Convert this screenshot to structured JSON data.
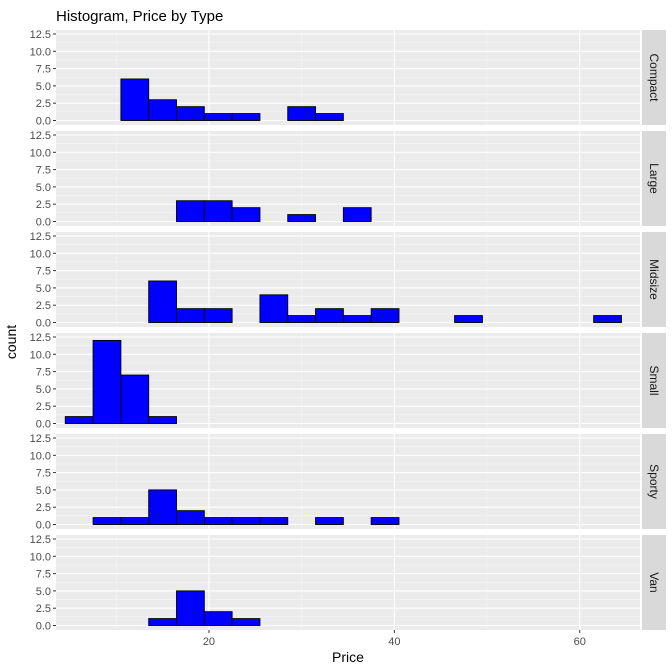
{
  "chart_data": {
    "type": "bar",
    "title": "Histogram, Price by Type",
    "xlabel": "Price",
    "ylabel": "count",
    "xlim": [
      3.5,
      66.5
    ],
    "ylim": [
      0,
      12.5
    ],
    "x_ticks": [
      20,
      40,
      60
    ],
    "y_ticks": [
      0.0,
      2.5,
      5.0,
      7.5,
      10.0,
      12.5
    ],
    "y_tick_labels": [
      "0.0",
      "2.5",
      "5.0",
      "7.5",
      "10.0",
      "12.5"
    ],
    "bin_centers": [
      6,
      9,
      12,
      15,
      18,
      21,
      24,
      27,
      30,
      33,
      36,
      39,
      42,
      45,
      48,
      51,
      54,
      57,
      60,
      63
    ],
    "bin_width": 3,
    "grid": true,
    "bar_fill": "#0000ff",
    "bar_stroke": "#000000",
    "panel_bg": "#ebebeb",
    "strip_bg": "#d9d9d9",
    "series": [
      {
        "name": "Compact",
        "values": [
          0,
          0,
          6,
          3,
          2,
          1,
          1,
          0,
          2,
          1,
          0,
          0,
          0,
          0,
          0,
          0,
          0,
          0,
          0,
          0
        ]
      },
      {
        "name": "Large",
        "values": [
          0,
          0,
          0,
          0,
          3,
          3,
          2,
          0,
          1,
          0,
          2,
          0,
          0,
          0,
          0,
          0,
          0,
          0,
          0,
          0
        ]
      },
      {
        "name": "Midsize",
        "values": [
          0,
          0,
          0,
          6,
          2,
          2,
          0,
          4,
          1,
          2,
          1,
          2,
          0,
          0,
          1,
          0,
          0,
          0,
          0,
          1
        ]
      },
      {
        "name": "Small",
        "values": [
          1,
          12,
          7,
          1,
          0,
          0,
          0,
          0,
          0,
          0,
          0,
          0,
          0,
          0,
          0,
          0,
          0,
          0,
          0,
          0
        ]
      },
      {
        "name": "Sporty",
        "values": [
          0,
          1,
          1,
          5,
          2,
          1,
          1,
          1,
          0,
          1,
          0,
          1,
          0,
          0,
          0,
          0,
          0,
          0,
          0,
          0
        ]
      },
      {
        "name": "Van",
        "values": [
          0,
          0,
          0,
          1,
          5,
          2,
          1,
          0,
          0,
          0,
          0,
          0,
          0,
          0,
          0,
          0,
          0,
          0,
          0,
          0
        ]
      }
    ]
  }
}
